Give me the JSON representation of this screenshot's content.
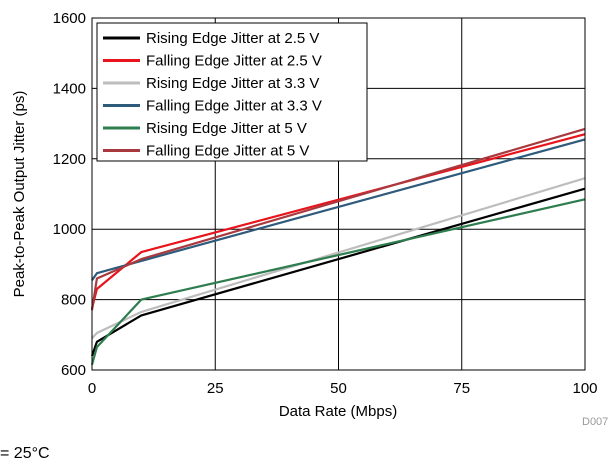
{
  "chart_data": {
    "type": "line",
    "xlabel": "Data Rate (Mbps)",
    "ylabel": "Peak-to-Peak Output Jitter (ps)",
    "xlim": [
      0,
      100
    ],
    "ylim": [
      600,
      1600
    ],
    "xticks": [
      0,
      25,
      50,
      75,
      100
    ],
    "yticks": [
      600,
      800,
      1000,
      1200,
      1400,
      1600
    ],
    "grid": true,
    "legend_position": "top-left",
    "series": [
      {
        "name": "Rising Edge Jitter at 2.5 V",
        "color": "#000000",
        "x": [
          0,
          1,
          10,
          100
        ],
        "y": [
          640,
          680,
          755,
          1115
        ]
      },
      {
        "name": "Falling Edge Jitter at 2.5 V",
        "color": "#e8141c",
        "x": [
          0,
          1,
          10,
          100
        ],
        "y": [
          775,
          830,
          935,
          1270
        ]
      },
      {
        "name": "Rising Edge Jitter at 3.3 V",
        "color": "#bdbdbd",
        "x": [
          0,
          1,
          10,
          100
        ],
        "y": [
          690,
          705,
          765,
          1145
        ]
      },
      {
        "name": "Falling Edge Jitter at 3.3 V",
        "color": "#2e5a7c",
        "x": [
          0,
          1,
          10,
          100
        ],
        "y": [
          855,
          875,
          910,
          1255
        ]
      },
      {
        "name": "Rising Edge Jitter at 5 V",
        "color": "#2e7d4f",
        "x": [
          0,
          1,
          10,
          100
        ],
        "y": [
          615,
          665,
          800,
          1085
        ]
      },
      {
        "name": "Falling Edge Jitter at 5 V",
        "color": "#a83a3f",
        "x": [
          0,
          1,
          10,
          100
        ],
        "y": [
          770,
          860,
          915,
          1285
        ]
      }
    ]
  },
  "chart_code": "D007",
  "note": "= 25°C"
}
